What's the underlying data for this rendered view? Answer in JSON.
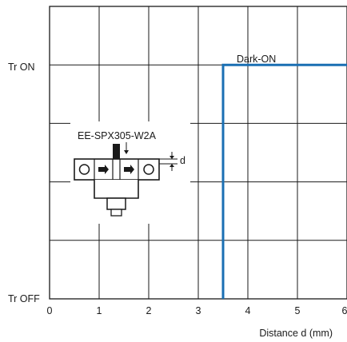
{
  "chart_data": {
    "type": "line",
    "xlabel": "Distance d (mm)",
    "xlim": [
      0,
      6
    ],
    "x_ticks": [
      "0",
      "1",
      "2",
      "3",
      "4",
      "5",
      "6"
    ],
    "y_categories": [
      "Tr OFF",
      "Tr ON"
    ],
    "grid": true,
    "series": [
      {
        "name": "Dark-ON",
        "color": "#1a6fb3",
        "points": [
          {
            "x": 3.5,
            "y": "Tr OFF"
          },
          {
            "x": 3.5,
            "y": "Tr ON"
          },
          {
            "x": 6,
            "y": "Tr ON"
          }
        ]
      }
    ],
    "inset": {
      "model_label": "EE-SPX305-W2A",
      "dimension_label": "d"
    }
  }
}
